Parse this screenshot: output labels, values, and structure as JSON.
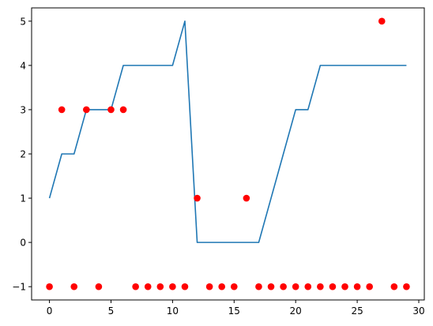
{
  "chart_data": {
    "type": "line",
    "title": "",
    "xlabel": "",
    "ylabel": "",
    "xlim": [
      -1.45,
      30.45
    ],
    "ylim": [
      -1.3,
      5.3
    ],
    "grid": false,
    "legend": "none",
    "x_ticks": [
      0,
      5,
      10,
      15,
      20,
      25,
      30
    ],
    "y_ticks": [
      -1,
      0,
      1,
      2,
      3,
      4,
      5
    ],
    "x_tick_labels": [
      "0",
      "5",
      "10",
      "15",
      "20",
      "25",
      "30"
    ],
    "y_tick_labels": [
      "−1",
      "0",
      "1",
      "2",
      "3",
      "4",
      "5"
    ],
    "series": [
      {
        "type": "line",
        "color": "#1f77b4",
        "x": [
          0,
          1,
          2,
          3,
          4,
          5,
          6,
          7,
          8,
          9,
          10,
          11,
          12,
          13,
          14,
          15,
          16,
          17,
          18,
          19,
          20,
          21,
          22,
          23,
          24,
          25,
          26,
          27,
          28,
          29
        ],
        "y": [
          1,
          2,
          2,
          3,
          3,
          3,
          4,
          4,
          4,
          4,
          4,
          5,
          0,
          0,
          0,
          0,
          0,
          0,
          1,
          2,
          3,
          3,
          4,
          4,
          4,
          4,
          4,
          4,
          4,
          4
        ]
      },
      {
        "type": "scatter",
        "color": "#ff0000",
        "x": [
          0,
          1,
          2,
          3,
          4,
          5,
          6,
          7,
          8,
          9,
          10,
          11,
          12,
          13,
          14,
          15,
          16,
          17,
          18,
          19,
          20,
          21,
          22,
          23,
          24,
          25,
          26,
          27,
          28,
          29
        ],
        "y": [
          -1,
          3,
          -1,
          3,
          -1,
          3,
          3,
          -1,
          -1,
          -1,
          -1,
          -1,
          1,
          -1,
          -1,
          -1,
          1,
          -1,
          -1,
          -1,
          -1,
          -1,
          -1,
          -1,
          -1,
          -1,
          -1,
          5,
          -1,
          -1
        ]
      }
    ]
  }
}
